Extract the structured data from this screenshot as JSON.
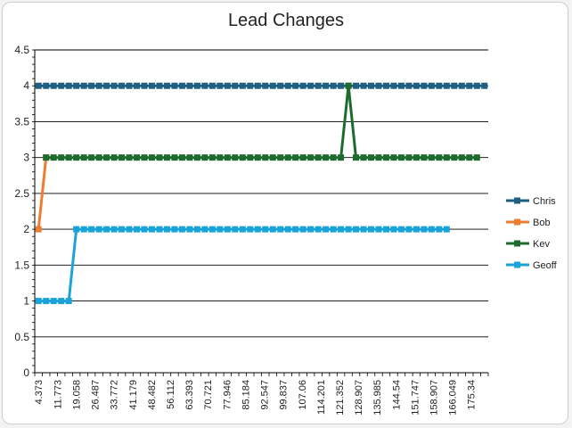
{
  "chart_data": {
    "type": "line",
    "title": "Lead Changes",
    "xlabel": "",
    "ylabel": "",
    "ylim": [
      0,
      4.5
    ],
    "y_ticks": [
      0,
      0.5,
      1,
      1.5,
      2,
      2.5,
      3,
      3.5,
      4,
      4.5
    ],
    "x_tick_labels": [
      "4.373",
      "11.773",
      "19.058",
      "26.487",
      "33.772",
      "41.179",
      "48.482",
      "56.112",
      "63.393",
      "70.721",
      "77.946",
      "85.184",
      "92.547",
      "99.837",
      "107.06",
      "114.201",
      "121.352",
      "128.907",
      "135.985",
      "144.54",
      "151.747",
      "158.907",
      "166.049",
      "175.34"
    ],
    "grid": "horizontal",
    "legend_position": "right",
    "categories_count": 60,
    "series": [
      {
        "name": "Chris",
        "color": "#1f5f82",
        "points": [
          [
            0,
            4
          ],
          [
            59,
            4
          ]
        ]
      },
      {
        "name": "Bob",
        "color": "#ed7d31",
        "points": [
          [
            0,
            2
          ],
          [
            1,
            3
          ]
        ]
      },
      {
        "name": "Kev",
        "color": "#1e6b2e",
        "points": [
          [
            1,
            3
          ],
          [
            40,
            3
          ],
          [
            41,
            4
          ],
          [
            42,
            3
          ],
          [
            58,
            3
          ]
        ]
      },
      {
        "name": "Geoff",
        "color": "#1aa3d8",
        "points": [
          [
            0,
            1
          ],
          [
            4,
            1
          ],
          [
            5,
            2
          ],
          [
            54,
            2
          ]
        ]
      }
    ]
  }
}
